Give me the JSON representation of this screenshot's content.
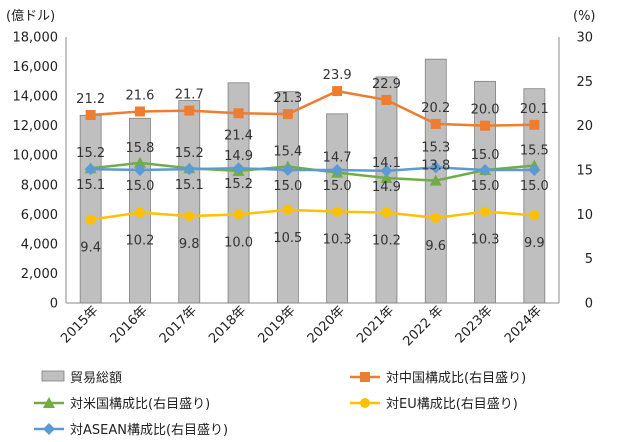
{
  "chart_data": {
    "type": "bar",
    "categories": [
      "2015年",
      "2016年",
      "2017年",
      "2018年",
      "2019年",
      "2020年",
      "2021年",
      "2022 年",
      "2023年",
      "2024年"
    ],
    "left_axis": {
      "unit": "(億ドル)",
      "ylim": [
        0,
        18000
      ],
      "ticks": [
        "0",
        "2,000",
        "4,000",
        "6,000",
        "8,000",
        "10,000",
        "12,000",
        "14,000",
        "16,000",
        "18,000"
      ]
    },
    "right_axis": {
      "unit": "(%)",
      "ylim": [
        0,
        30
      ],
      "ticks": [
        "0",
        "5",
        "10",
        "15",
        "20",
        "25",
        "30"
      ]
    },
    "grid": false,
    "legend_position": "bottom",
    "series": [
      {
        "name": "貿易総額",
        "type": "bar",
        "axis": "left",
        "color": "#bfbfbf",
        "values": [
          12700,
          12500,
          13700,
          14900,
          14300,
          12800,
          15300,
          16500,
          15000,
          14500
        ]
      },
      {
        "name": "対中国構成比(右目盛り)",
        "type": "line",
        "axis": "right",
        "color": "#ed7d31",
        "marker": "square",
        "values": [
          21.2,
          21.6,
          21.7,
          21.4,
          21.3,
          23.9,
          22.9,
          20.2,
          20.0,
          20.1
        ],
        "labels": [
          "21.2",
          "21.6",
          "21.7",
          "21.4",
          "21.3",
          "23.9",
          "22.9",
          "20.2",
          "20.0",
          "20.1"
        ]
      },
      {
        "name": "対米国構成比(右目盛り)",
        "type": "line",
        "axis": "right",
        "color": "#70ad47",
        "marker": "triangle",
        "values": [
          15.2,
          15.8,
          15.2,
          14.9,
          15.4,
          14.7,
          14.1,
          13.8,
          15.0,
          15.5
        ],
        "labels": [
          "15.2",
          "15.8",
          "15.2",
          "14.9",
          "15.4",
          "14.7",
          "14.1",
          "13.8",
          "15.0",
          "15.5"
        ]
      },
      {
        "name": "対EU構成比(右目盛り)",
        "type": "line",
        "axis": "right",
        "color": "#ffc000",
        "marker": "circle",
        "values": [
          9.4,
          10.2,
          9.8,
          10.0,
          10.5,
          10.3,
          10.2,
          9.6,
          10.3,
          9.9
        ],
        "labels": [
          "9.4",
          "10.2",
          "9.8",
          "10.0",
          "10.5",
          "10.3",
          "10.2",
          "9.6",
          "10.3",
          "9.9"
        ]
      },
      {
        "name": "対ASEAN構成比(右目盛り)",
        "type": "line",
        "axis": "right",
        "color": "#5b9bd5",
        "marker": "diamond",
        "values": [
          15.1,
          15.0,
          15.1,
          15.2,
          15.0,
          15.0,
          14.9,
          15.3,
          15.0,
          15.0
        ],
        "labels": [
          "15.1",
          "15.0",
          "15.1",
          "15.2",
          "15.0",
          "15.0",
          "14.9",
          "15.3",
          "15.0",
          "15.0"
        ]
      }
    ]
  }
}
